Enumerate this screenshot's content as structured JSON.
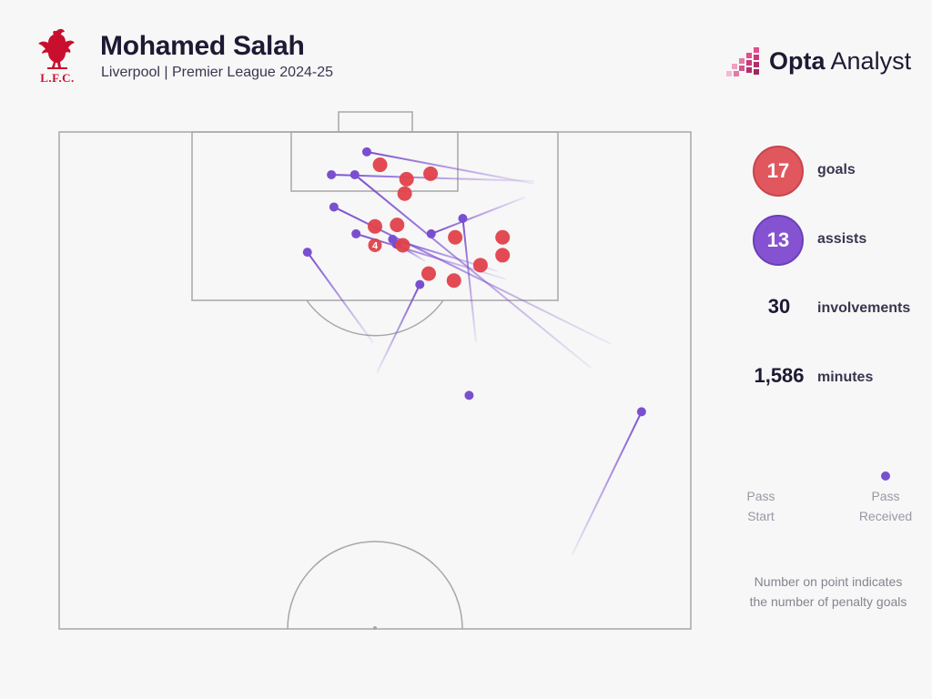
{
  "header": {
    "title": "Mohamed Salah",
    "subtitle": "Liverpool | Premier League 2024-25",
    "club_crest_text": "L.F.C.",
    "brand_bold": "Opta",
    "brand_light": " Analyst"
  },
  "stats": [
    {
      "value": "17",
      "label": "goals",
      "color": "#e0585e",
      "style": "circle"
    },
    {
      "value": "13",
      "label": "assists",
      "color": "#8553d1",
      "style": "circle"
    },
    {
      "value": "30",
      "label": "involvements",
      "style": "plain"
    },
    {
      "value": "1,586",
      "label": "minutes",
      "style": "plain"
    }
  ],
  "legend": {
    "start_label": "Pass\nStart",
    "end_label": "Pass\nReceived"
  },
  "note": "Number on point indicates\nthe number of penalty goals",
  "colors": {
    "goal": "#e0414a",
    "assist": "#7a4fcf",
    "pitch_line": "#a7a7a7",
    "background": "#f7f7f7"
  },
  "chart_data": {
    "type": "scatter",
    "description_of_axes": "pitch coordinates, 0-100 on both axes; x across pitch width (0 = left touchline), y from goal line (0) to halfway line (100)",
    "xlim": [
      0,
      100
    ],
    "ylim": [
      0,
      100
    ],
    "goals": [
      {
        "x": 50.8,
        "y": 6.6,
        "penalties": ""
      },
      {
        "x": 55.0,
        "y": 9.5,
        "penalties": ""
      },
      {
        "x": 58.8,
        "y": 8.4,
        "penalties": ""
      },
      {
        "x": 54.7,
        "y": 12.4,
        "penalties": ""
      },
      {
        "x": 50.0,
        "y": 19.0,
        "penalties": ""
      },
      {
        "x": 53.5,
        "y": 18.7,
        "penalties": ""
      },
      {
        "x": 62.7,
        "y": 21.2,
        "penalties": ""
      },
      {
        "x": 70.2,
        "y": 21.2,
        "penalties": ""
      },
      {
        "x": 70.2,
        "y": 24.8,
        "penalties": ""
      },
      {
        "x": 50.0,
        "y": 22.8,
        "penalties": "4"
      },
      {
        "x": 54.4,
        "y": 22.8,
        "penalties": ""
      },
      {
        "x": 66.7,
        "y": 26.8,
        "penalties": ""
      },
      {
        "x": 58.5,
        "y": 28.5,
        "penalties": ""
      },
      {
        "x": 62.5,
        "y": 29.9,
        "penalties": ""
      }
    ],
    "assists": [
      {
        "start_x": 75.2,
        "start_y": 10.4,
        "end_x": 48.7,
        "end_y": 4.0
      },
      {
        "start_x": 75.2,
        "start_y": 9.9,
        "end_x": 43.1,
        "end_y": 8.6
      },
      {
        "start_x": 84.2,
        "start_y": 47.5,
        "end_x": 46.8,
        "end_y": 8.6
      },
      {
        "start_x": 73.8,
        "start_y": 13.1,
        "end_x": 58.9,
        "end_y": 20.5
      },
      {
        "start_x": 66.0,
        "start_y": 42.4,
        "end_x": 63.9,
        "end_y": 17.4
      },
      {
        "start_x": 87.4,
        "start_y": 42.7,
        "end_x": 43.5,
        "end_y": 15.1
      },
      {
        "start_x": 70.7,
        "start_y": 29.6,
        "end_x": 47.0,
        "end_y": 20.5
      },
      {
        "start_x": 69.4,
        "start_y": 28.0,
        "end_x": 52.8,
        "end_y": 21.6
      },
      {
        "start_x": 49.7,
        "start_y": 42.4,
        "end_x": 39.3,
        "end_y": 24.2
      },
      {
        "start_x": 50.3,
        "start_y": 48.5,
        "end_x": 57.1,
        "end_y": 30.7
      },
      {
        "start_x": 81.2,
        "start_y": 85.1,
        "end_x": 92.2,
        "end_y": 56.3
      },
      {
        "start_x": 64.9,
        "start_y": 53.0,
        "end_x": 64.9,
        "end_y": 53.0
      },
      {
        "start_x": 58.0,
        "start_y": 26.0,
        "end_x": 53.4,
        "end_y": 22.6
      }
    ]
  }
}
